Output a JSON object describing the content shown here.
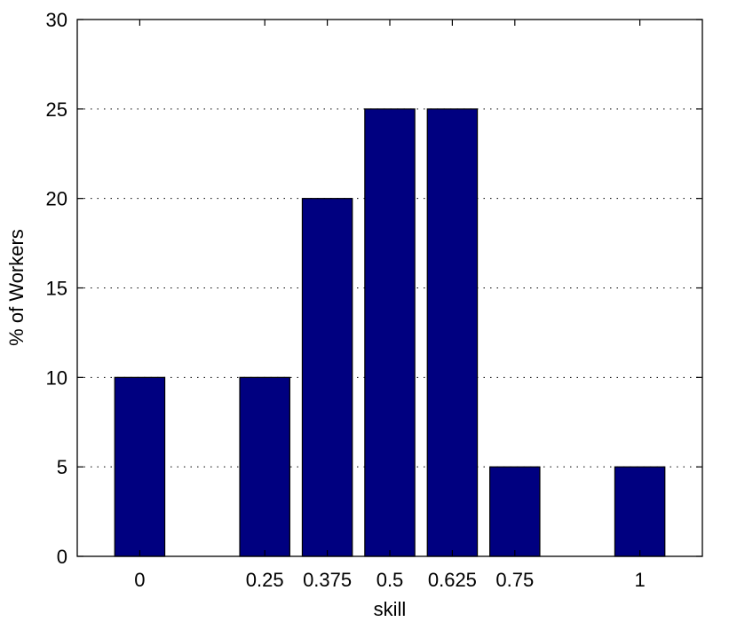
{
  "chart_data": {
    "type": "bar",
    "x": [
      0,
      0.25,
      0.375,
      0.5,
      0.625,
      0.75,
      1
    ],
    "x_tick_labels": [
      "0",
      "0.25",
      "0.375",
      "0.5",
      "0.625",
      "0.75",
      "1"
    ],
    "values": [
      10,
      10,
      20,
      25,
      25,
      5,
      5
    ],
    "xlabel": "skill",
    "ylabel": "% of Workers",
    "xlim": [
      -0.125,
      1.125
    ],
    "ylim": [
      0,
      30
    ],
    "y_ticks": [
      0,
      5,
      10,
      15,
      20,
      25,
      30
    ],
    "grid": "y-dotted",
    "bar_color": "#000080",
    "bar_edge_color": "#000000"
  }
}
